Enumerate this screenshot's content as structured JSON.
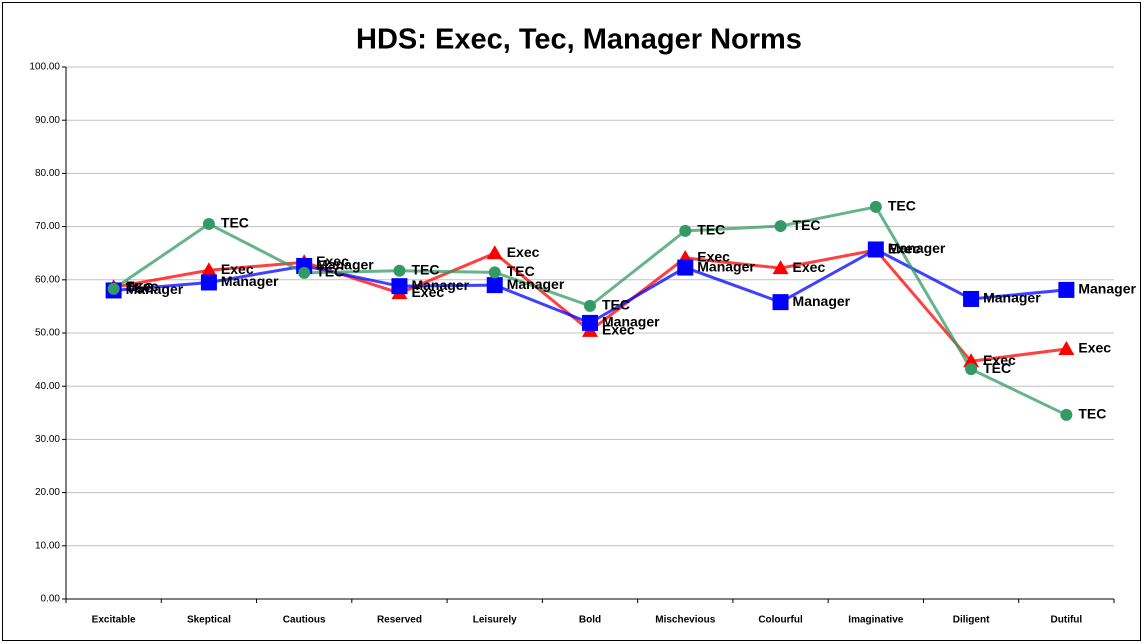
{
  "chart_data": {
    "type": "line",
    "title": "HDS:  Exec, Tec, Manager Norms",
    "categories": [
      "Excitable",
      "Skeptical",
      "Cautious",
      "Reserved",
      "Leisurely",
      "Bold",
      "Mischevious",
      "Colourful",
      "Imaginative",
      "Diligent",
      "Dutiful"
    ],
    "series": [
      {
        "name": "Exec",
        "color": "#ff0000",
        "marker": "triangle",
        "values": [
          58.6,
          61.8,
          63.3,
          57.5,
          65.0,
          50.4,
          64.1,
          62.2,
          65.6,
          44.7,
          47.0
        ]
      },
      {
        "name": "Manager",
        "color": "#0000ff",
        "marker": "square",
        "values": [
          58.0,
          59.5,
          62.6,
          58.8,
          59.0,
          51.9,
          62.3,
          55.8,
          65.7,
          56.4,
          58.1
        ]
      },
      {
        "name": "TEC",
        "color": "#339966",
        "marker": "circle",
        "values": [
          58.3,
          70.5,
          61.3,
          61.7,
          61.4,
          55.1,
          69.2,
          70.1,
          73.7,
          43.2,
          34.6
        ]
      }
    ],
    "ylim": [
      0,
      100
    ],
    "yticks": [
      {
        "value": 0,
        "label": "0.00"
      },
      {
        "value": 10,
        "label": "10.00"
      },
      {
        "value": 20,
        "label": "20.00"
      },
      {
        "value": 30,
        "label": "30.00"
      },
      {
        "value": 40,
        "label": "40.00"
      },
      {
        "value": 50,
        "label": "50.00"
      },
      {
        "value": 60,
        "label": "60.00"
      },
      {
        "value": 70,
        "label": "70.00"
      },
      {
        "value": 80,
        "label": "80.00"
      },
      {
        "value": 90,
        "label": "90.00"
      },
      {
        "value": 100,
        "label": "100.00"
      }
    ],
    "grid": true
  }
}
